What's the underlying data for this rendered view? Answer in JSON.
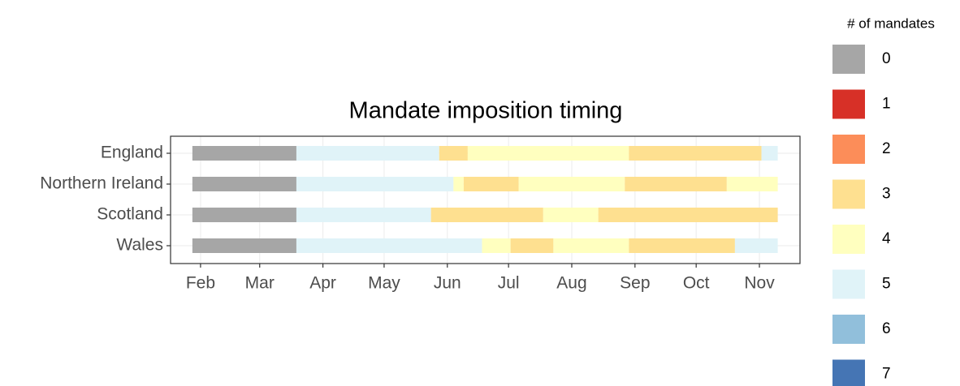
{
  "chart_data": {
    "type": "gantt",
    "title": "Mandate imposition timing",
    "categories": [
      "England",
      "Northern Ireland",
      "Scotland",
      "Wales"
    ],
    "series": [
      {
        "name": "England",
        "segments": [
          {
            "start": 28,
            "end": 79,
            "value": 0
          },
          {
            "start": 79,
            "end": 149,
            "value": 5
          },
          {
            "start": 149,
            "end": 163,
            "value": 3
          },
          {
            "start": 163,
            "end": 242,
            "value": 4
          },
          {
            "start": 242,
            "end": 307,
            "value": 3
          },
          {
            "start": 307,
            "end": 315,
            "value": 5
          }
        ]
      },
      {
        "name": "Northern Ireland",
        "segments": [
          {
            "start": 28,
            "end": 79,
            "value": 0
          },
          {
            "start": 79,
            "end": 156,
            "value": 5
          },
          {
            "start": 156,
            "end": 161,
            "value": 4
          },
          {
            "start": 161,
            "end": 188,
            "value": 3
          },
          {
            "start": 188,
            "end": 240,
            "value": 4
          },
          {
            "start": 240,
            "end": 290,
            "value": 3
          },
          {
            "start": 290,
            "end": 315,
            "value": 4
          }
        ]
      },
      {
        "name": "Scotland",
        "segments": [
          {
            "start": 28,
            "end": 79,
            "value": 0
          },
          {
            "start": 79,
            "end": 145,
            "value": 5
          },
          {
            "start": 145,
            "end": 200,
            "value": 3
          },
          {
            "start": 200,
            "end": 227,
            "value": 4
          },
          {
            "start": 227,
            "end": 315,
            "value": 3
          }
        ]
      },
      {
        "name": "Wales",
        "segments": [
          {
            "start": 28,
            "end": 79,
            "value": 0
          },
          {
            "start": 79,
            "end": 170,
            "value": 5
          },
          {
            "start": 170,
            "end": 184,
            "value": 4
          },
          {
            "start": 184,
            "end": 205,
            "value": 3
          },
          {
            "start": 205,
            "end": 242,
            "value": 4
          },
          {
            "start": 242,
            "end": 294,
            "value": 3
          },
          {
            "start": 294,
            "end": 315,
            "value": 5
          }
        ]
      }
    ],
    "xlim": [
      17.3,
      325.9
    ],
    "xticks": [
      {
        "value": 32,
        "label": "Feb"
      },
      {
        "value": 61,
        "label": "Mar"
      },
      {
        "value": 92,
        "label": "Apr"
      },
      {
        "value": 122,
        "label": "May"
      },
      {
        "value": 153,
        "label": "Jun"
      },
      {
        "value": 183,
        "label": "Jul"
      },
      {
        "value": 214,
        "label": "Aug"
      },
      {
        "value": 245,
        "label": "Sep"
      },
      {
        "value": 275,
        "label": "Oct"
      },
      {
        "value": 306,
        "label": "Nov"
      }
    ],
    "grid": true,
    "legend": {
      "title": "# of mandates",
      "position": "right",
      "levels": [
        0,
        1,
        2,
        3,
        4,
        5,
        6,
        7
      ],
      "colors": [
        "#a6a6a6",
        "#d73027",
        "#fc8d59",
        "#fee090",
        "#ffffbf",
        "#e0f3f8",
        "#91bfdb",
        "#4575b4"
      ]
    }
  }
}
